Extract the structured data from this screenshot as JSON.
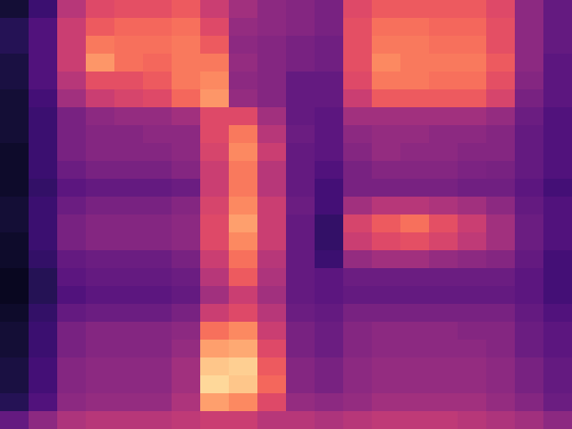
{
  "chart_data": {
    "type": "heatmap",
    "color": "magma",
    "tick_labels": false,
    "zlim": [
      0,
      1
    ],
    "cells": [
      [
        0.1,
        0.2,
        0.5,
        0.6,
        0.62,
        0.62,
        0.65,
        0.55,
        0.45,
        0.4,
        0.38,
        0.35,
        0.6,
        0.65,
        0.65,
        0.65,
        0.65,
        0.6,
        0.4,
        0.3
      ],
      [
        0.15,
        0.25,
        0.55,
        0.65,
        0.68,
        0.68,
        0.7,
        0.6,
        0.42,
        0.4,
        0.38,
        0.35,
        0.62,
        0.7,
        0.7,
        0.68,
        0.68,
        0.62,
        0.4,
        0.3
      ],
      [
        0.15,
        0.25,
        0.55,
        0.72,
        0.7,
        0.7,
        0.72,
        0.65,
        0.4,
        0.38,
        0.35,
        0.33,
        0.62,
        0.72,
        0.72,
        0.7,
        0.7,
        0.62,
        0.4,
        0.3
      ],
      [
        0.12,
        0.25,
        0.55,
        0.78,
        0.7,
        0.68,
        0.72,
        0.72,
        0.42,
        0.38,
        0.35,
        0.33,
        0.62,
        0.75,
        0.72,
        0.72,
        0.72,
        0.65,
        0.4,
        0.28
      ],
      [
        0.12,
        0.25,
        0.5,
        0.62,
        0.62,
        0.65,
        0.72,
        0.75,
        0.4,
        0.38,
        0.3,
        0.3,
        0.6,
        0.72,
        0.72,
        0.7,
        0.7,
        0.62,
        0.38,
        0.28
      ],
      [
        0.1,
        0.22,
        0.45,
        0.55,
        0.58,
        0.6,
        0.68,
        0.78,
        0.42,
        0.38,
        0.3,
        0.3,
        0.55,
        0.65,
        0.65,
        0.65,
        0.65,
        0.58,
        0.35,
        0.28
      ],
      [
        0.1,
        0.2,
        0.35,
        0.4,
        0.42,
        0.42,
        0.45,
        0.6,
        0.6,
        0.45,
        0.3,
        0.28,
        0.45,
        0.45,
        0.45,
        0.45,
        0.45,
        0.42,
        0.32,
        0.25
      ],
      [
        0.1,
        0.2,
        0.35,
        0.38,
        0.38,
        0.4,
        0.4,
        0.6,
        0.72,
        0.5,
        0.32,
        0.28,
        0.4,
        0.42,
        0.42,
        0.4,
        0.4,
        0.38,
        0.3,
        0.25
      ],
      [
        0.08,
        0.2,
        0.35,
        0.38,
        0.38,
        0.38,
        0.4,
        0.58,
        0.75,
        0.55,
        0.3,
        0.28,
        0.38,
        0.42,
        0.4,
        0.4,
        0.38,
        0.38,
        0.3,
        0.25
      ],
      [
        0.08,
        0.2,
        0.32,
        0.35,
        0.35,
        0.35,
        0.38,
        0.55,
        0.72,
        0.5,
        0.3,
        0.25,
        0.35,
        0.38,
        0.38,
        0.38,
        0.36,
        0.35,
        0.3,
        0.25
      ],
      [
        0.08,
        0.18,
        0.28,
        0.3,
        0.3,
        0.3,
        0.32,
        0.55,
        0.72,
        0.5,
        0.3,
        0.22,
        0.35,
        0.35,
        0.35,
        0.35,
        0.33,
        0.33,
        0.28,
        0.22
      ],
      [
        0.1,
        0.2,
        0.32,
        0.35,
        0.35,
        0.35,
        0.38,
        0.58,
        0.75,
        0.55,
        0.32,
        0.22,
        0.45,
        0.5,
        0.5,
        0.48,
        0.45,
        0.4,
        0.3,
        0.25
      ],
      [
        0.1,
        0.2,
        0.35,
        0.38,
        0.38,
        0.38,
        0.4,
        0.6,
        0.8,
        0.55,
        0.3,
        0.18,
        0.58,
        0.65,
        0.7,
        0.62,
        0.55,
        0.45,
        0.32,
        0.25
      ],
      [
        0.08,
        0.2,
        0.35,
        0.38,
        0.38,
        0.38,
        0.4,
        0.6,
        0.75,
        0.55,
        0.3,
        0.18,
        0.55,
        0.6,
        0.62,
        0.58,
        0.52,
        0.45,
        0.32,
        0.25
      ],
      [
        0.08,
        0.18,
        0.3,
        0.32,
        0.32,
        0.32,
        0.35,
        0.55,
        0.7,
        0.5,
        0.3,
        0.2,
        0.42,
        0.45,
        0.45,
        0.42,
        0.4,
        0.38,
        0.3,
        0.22
      ],
      [
        0.06,
        0.15,
        0.28,
        0.3,
        0.3,
        0.3,
        0.32,
        0.5,
        0.65,
        0.48,
        0.3,
        0.28,
        0.32,
        0.32,
        0.32,
        0.32,
        0.32,
        0.32,
        0.28,
        0.22
      ],
      [
        0.06,
        0.15,
        0.25,
        0.28,
        0.28,
        0.28,
        0.3,
        0.45,
        0.55,
        0.45,
        0.3,
        0.28,
        0.3,
        0.3,
        0.3,
        0.3,
        0.3,
        0.3,
        0.28,
        0.22
      ],
      [
        0.08,
        0.18,
        0.3,
        0.32,
        0.32,
        0.32,
        0.35,
        0.55,
        0.6,
        0.5,
        0.32,
        0.3,
        0.35,
        0.35,
        0.35,
        0.35,
        0.35,
        0.35,
        0.3,
        0.25
      ],
      [
        0.1,
        0.2,
        0.35,
        0.38,
        0.38,
        0.38,
        0.4,
        0.7,
        0.75,
        0.55,
        0.35,
        0.32,
        0.38,
        0.4,
        0.4,
        0.4,
        0.38,
        0.38,
        0.32,
        0.28
      ],
      [
        0.1,
        0.2,
        0.35,
        0.38,
        0.38,
        0.38,
        0.42,
        0.8,
        0.82,
        0.6,
        0.35,
        0.32,
        0.38,
        0.4,
        0.4,
        0.4,
        0.4,
        0.38,
        0.32,
        0.28
      ],
      [
        0.12,
        0.22,
        0.38,
        0.4,
        0.4,
        0.4,
        0.45,
        0.88,
        0.9,
        0.65,
        0.38,
        0.35,
        0.4,
        0.42,
        0.42,
        0.42,
        0.42,
        0.4,
        0.35,
        0.3
      ],
      [
        0.12,
        0.22,
        0.38,
        0.4,
        0.4,
        0.4,
        0.45,
        0.92,
        0.88,
        0.68,
        0.38,
        0.35,
        0.4,
        0.42,
        0.42,
        0.42,
        0.42,
        0.4,
        0.35,
        0.3
      ],
      [
        0.15,
        0.25,
        0.4,
        0.42,
        0.42,
        0.42,
        0.48,
        0.8,
        0.75,
        0.6,
        0.42,
        0.4,
        0.42,
        0.45,
        0.45,
        0.45,
        0.45,
        0.42,
        0.38,
        0.32
      ],
      [
        0.3,
        0.4,
        0.48,
        0.5,
        0.5,
        0.5,
        0.52,
        0.55,
        0.55,
        0.5,
        0.5,
        0.48,
        0.5,
        0.52,
        0.52,
        0.52,
        0.5,
        0.48,
        0.45,
        0.4
      ]
    ]
  }
}
